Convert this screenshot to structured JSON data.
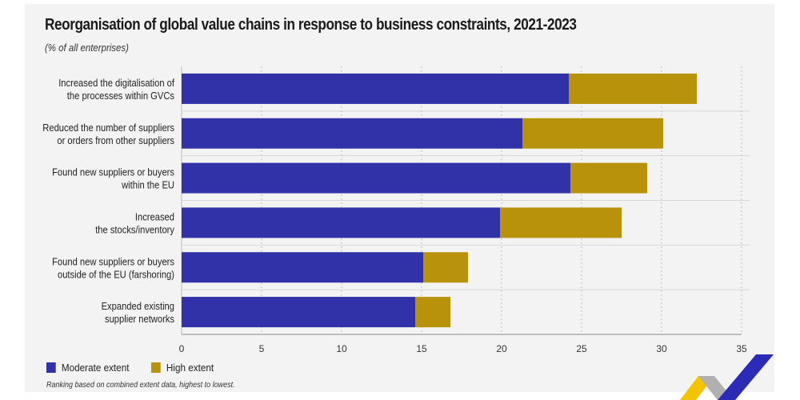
{
  "chart_data": {
    "type": "bar",
    "orientation": "horizontal",
    "stacked": true,
    "title": "Reorganisation of global value chains in response to business constraints, 2021-2023",
    "subtitle": "(% of all enterprises)",
    "categories": [
      [
        "Increased the digitalisation of",
        "the processes within GVCs"
      ],
      [
        "Reduced the number of suppliers",
        "or orders from other suppliers"
      ],
      [
        "Found new suppliers or buyers",
        "within the EU"
      ],
      [
        "Increased",
        "the stocks/inventory"
      ],
      [
        "Found new suppliers or buyers",
        "outside of the EU (farshoring)"
      ],
      [
        "Expanded existing",
        "supplier networks"
      ]
    ],
    "series": [
      {
        "name": "Moderate extent",
        "color": "#3131a8",
        "values": [
          24.2,
          21.3,
          24.3,
          19.9,
          15.1,
          14.6
        ]
      },
      {
        "name": "High extent",
        "color": "#b8920a",
        "values": [
          8.0,
          8.8,
          4.8,
          7.6,
          2.8,
          2.2
        ]
      }
    ],
    "xlim": [
      0,
      35
    ],
    "xticks": [
      0,
      5,
      10,
      15,
      20,
      25,
      30,
      35
    ],
    "xlabel": "",
    "ylabel": "",
    "grid": true,
    "legend_position": "bottom-left",
    "note": "Ranking based on combined extent data, highest to lowest."
  }
}
